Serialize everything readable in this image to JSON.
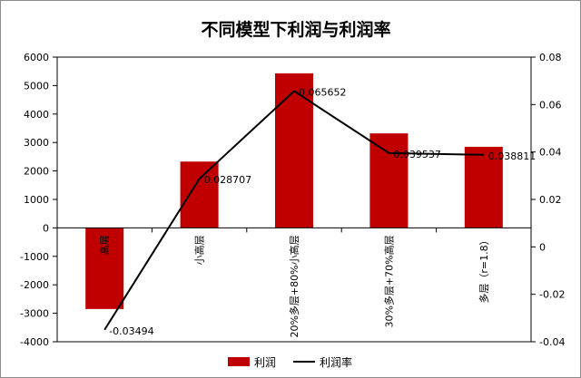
{
  "chart_data": {
    "type": "bar",
    "title": "不同模型下利润与利润率",
    "categories": [
      "高层",
      "小高层",
      "20%多层+80%小高层",
      "30%多层+70%高层",
      "多层（r=1.8）"
    ],
    "series": [
      {
        "name": "利润",
        "kind": "bar",
        "axis": "left",
        "color": "#c00000",
        "values": [
          -2850,
          2330,
          5430,
          3320,
          2850
        ]
      },
      {
        "name": "利润率",
        "kind": "line",
        "axis": "right",
        "color": "#000000",
        "values": [
          -0.03494,
          0.028707,
          0.065652,
          0.039537,
          0.038811
        ],
        "labels": [
          "-0.03494",
          "0.028707",
          "0.065652",
          "0.039537",
          "0.038811"
        ]
      }
    ],
    "y_left": {
      "min": -4000,
      "max": 6000,
      "step": 1000,
      "ticks": [
        "-4000",
        "-3000",
        "-2000",
        "-1000",
        "0",
        "1000",
        "2000",
        "3000",
        "4000",
        "5000",
        "6000"
      ]
    },
    "y_right": {
      "min": -0.04,
      "max": 0.08,
      "step": 0.02,
      "ticks": [
        "-0.04",
        "-0.02",
        "0",
        "0.02",
        "0.04",
        "0.06",
        "0.08"
      ]
    },
    "grid": false,
    "legend": "bottom"
  }
}
